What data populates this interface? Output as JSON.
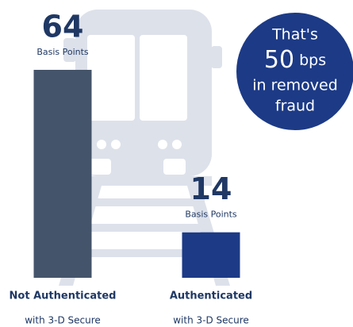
{
  "chart_data": {
    "type": "bar",
    "categories": [
      "Not Authenticated",
      "Authenticated"
    ],
    "category_sublabels": [
      "with 3-D Secure",
      "with 3-D Secure"
    ],
    "values": [
      64,
      14
    ],
    "value_unit": "Basis Points",
    "colors": [
      "#44546a",
      "#1c3a86"
    ],
    "callout": {
      "prefix": "That's",
      "value": 50,
      "unit": "bps",
      "lines": [
        "in removed",
        "fraud"
      ],
      "color": "#1c3a86"
    }
  }
}
